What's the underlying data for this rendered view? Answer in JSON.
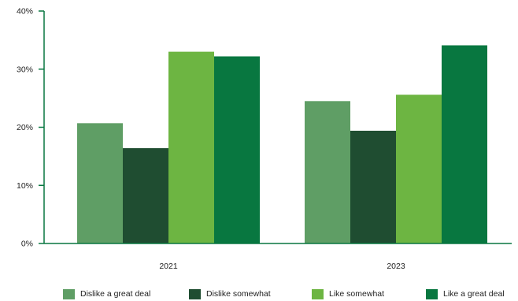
{
  "chart_data": {
    "type": "bar",
    "categories": [
      "2021",
      "2023"
    ],
    "series": [
      {
        "name": "Dislike a great deal",
        "values": [
          20.7,
          24.5
        ],
        "color": "#5f9e65"
      },
      {
        "name": "Dislike somewhat",
        "values": [
          16.4,
          19.4
        ],
        "color": "#1f4d31"
      },
      {
        "name": "Like somewhat",
        "values": [
          33.0,
          25.6
        ],
        "color": "#6db542"
      },
      {
        "name": "Like a great deal",
        "values": [
          32.2,
          34.1
        ],
        "color": "#087740"
      }
    ],
    "y_ticks": [
      "0%",
      "10%",
      "20%",
      "30%",
      "40%"
    ],
    "ylim": [
      0,
      40
    ],
    "unit": "%",
    "grid": false,
    "legend_position": "bottom",
    "axis_color": "#087740"
  }
}
